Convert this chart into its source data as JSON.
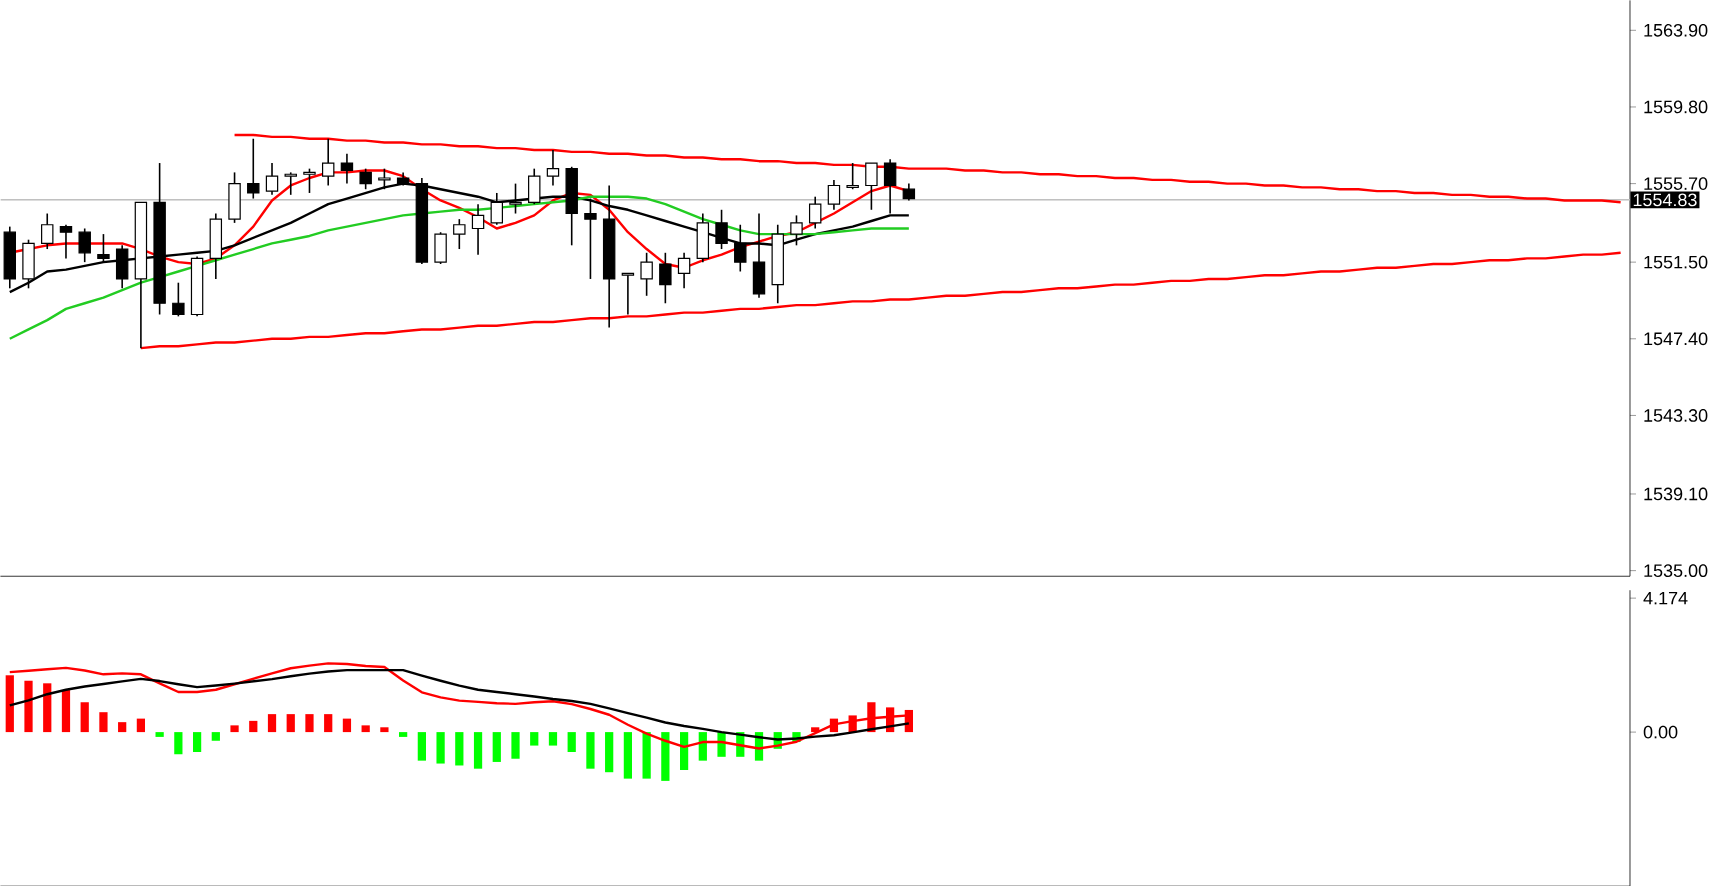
{
  "chart_data": [
    {
      "type": "candlestick",
      "tick_labels": "y",
      "ylim": [
        1534.7,
        1565.5
      ],
      "yticks": [
        {
          "value": 1535.0,
          "label": "1535.00"
        },
        {
          "value": 1539.1,
          "label": "1539.10"
        },
        {
          "value": 1543.3,
          "label": "1543.30"
        },
        {
          "value": 1547.4,
          "label": "1547.40"
        },
        {
          "value": 1551.5,
          "label": "1551.50"
        },
        {
          "value": 1555.7,
          "label": "1555.70"
        },
        {
          "value": 1559.8,
          "label": "1559.80"
        },
        {
          "value": 1563.9,
          "label": "1563.90"
        }
      ],
      "categories": [
        null,
        null,
        null,
        null,
        null,
        null,
        null,
        null,
        null,
        null,
        null,
        null,
        null,
        null,
        null,
        null,
        null,
        null,
        null,
        null,
        null,
        null,
        null,
        null,
        null,
        null,
        null,
        null,
        null,
        null,
        null,
        null,
        null,
        null,
        null,
        null,
        null,
        null,
        null,
        null,
        null,
        null,
        null,
        null,
        null,
        null,
        null,
        null,
        null,
        null,
        null,
        null,
        null,
        null,
        null,
        null,
        null,
        null,
        null,
        null,
        null,
        null,
        null,
        null,
        null,
        null,
        null,
        null,
        null,
        null,
        null,
        null,
        null,
        null,
        null,
        null,
        null,
        null,
        null,
        null,
        null,
        null,
        null,
        null,
        null,
        null,
        null
      ],
      "ohlc": [
        [
          1553.1,
          1553.4,
          1550.1,
          1550.6
        ],
        [
          1550.6,
          1552.7,
          1550.1,
          1552.5
        ],
        [
          1552.5,
          1554.1,
          1552.2,
          1553.5
        ],
        [
          1553.4,
          1553.5,
          1551.7,
          1553.1
        ],
        [
          1553.1,
          1553.3,
          1551.5,
          1552.0
        ],
        [
          1551.9,
          1553.0,
          1551.5,
          1551.7
        ],
        [
          1552.2,
          1552.4,
          1550.1,
          1550.6
        ],
        [
          1550.6,
          1554.7,
          1546.9,
          1554.7
        ],
        [
          1554.7,
          1556.8,
          1548.7,
          1549.3
        ],
        [
          1549.3,
          1550.4,
          1548.6,
          1548.7
        ],
        [
          1548.7,
          1551.8,
          1548.6,
          1551.7
        ],
        [
          1551.7,
          1554.1,
          1550.6,
          1553.8
        ],
        [
          1553.8,
          1556.3,
          1553.6,
          1555.7
        ],
        [
          1555.7,
          1558.1,
          1554.9,
          1555.2
        ],
        [
          1555.3,
          1556.8,
          1555.1,
          1556.1
        ],
        [
          1556.1,
          1556.3,
          1555.1,
          1556.2
        ],
        [
          1556.2,
          1556.5,
          1555.2,
          1556.3
        ],
        [
          1556.1,
          1558.1,
          1555.6,
          1556.8
        ],
        [
          1556.8,
          1557.3,
          1555.7,
          1556.4
        ],
        [
          1556.3,
          1556.5,
          1555.4,
          1555.7
        ],
        [
          1555.9,
          1556.5,
          1555.4,
          1556.0
        ],
        [
          1556.0,
          1556.3,
          1555.6,
          1555.7
        ],
        [
          1555.7,
          1556.0,
          1551.4,
          1551.5
        ],
        [
          1551.5,
          1553.1,
          1551.4,
          1553.0
        ],
        [
          1553.0,
          1553.8,
          1552.2,
          1553.5
        ],
        [
          1553.3,
          1554.6,
          1551.9,
          1554.0
        ],
        [
          1553.6,
          1555.2,
          1553.5,
          1554.7
        ],
        [
          1554.6,
          1555.7,
          1554.1,
          1554.7
        ],
        [
          1554.7,
          1556.5,
          1554.6,
          1556.1
        ],
        [
          1556.1,
          1557.5,
          1555.6,
          1556.5
        ],
        [
          1556.5,
          1556.6,
          1552.4,
          1554.1
        ],
        [
          1554.1,
          1554.9,
          1550.6,
          1553.8
        ],
        [
          1553.8,
          1555.6,
          1548.0,
          1550.6
        ],
        [
          1550.8,
          1550.9,
          1548.7,
          1550.9
        ],
        [
          1550.6,
          1552.0,
          1549.7,
          1551.5
        ],
        [
          1551.4,
          1552.0,
          1549.3,
          1550.3
        ],
        [
          1550.9,
          1552.0,
          1550.1,
          1551.7
        ],
        [
          1551.7,
          1554.1,
          1551.5,
          1553.6
        ],
        [
          1553.6,
          1554.3,
          1552.2,
          1552.5
        ],
        [
          1552.5,
          1553.5,
          1551.0,
          1551.5
        ],
        [
          1551.5,
          1554.1,
          1549.6,
          1549.8
        ],
        [
          1550.3,
          1553.5,
          1549.3,
          1553.0
        ],
        [
          1553.0,
          1554.0,
          1552.4,
          1553.6
        ],
        [
          1553.6,
          1555.0,
          1553.3,
          1554.6
        ],
        [
          1554.6,
          1555.9,
          1554.3,
          1555.6
        ],
        [
          1555.5,
          1556.8,
          1555.4,
          1555.6
        ],
        [
          1555.6,
          1556.8,
          1554.3,
          1556.8
        ],
        [
          1556.8,
          1557.0,
          1554.1,
          1555.6
        ],
        [
          1555.4,
          1555.7,
          1554.8,
          1554.9
        ],
        null,
        null,
        null,
        null,
        null,
        null,
        null,
        null,
        null,
        null,
        null,
        null,
        null,
        null,
        null,
        null,
        null,
        null,
        null,
        null,
        null,
        null,
        null,
        null,
        null,
        null,
        null,
        null,
        null,
        null,
        null,
        null,
        null,
        null,
        null,
        null,
        null,
        null
      ],
      "series": [
        {
          "type": "line",
          "color": "#ff0000",
          "values": [
            1552.0,
            1552.2,
            1552.4,
            1552.5,
            1552.5,
            1552.5,
            1552.5,
            1552.2,
            1551.8,
            1551.5,
            1551.4,
            1551.7,
            1552.4,
            1553.4,
            1554.8,
            1555.6,
            1556.0,
            1556.3,
            1556.3,
            1556.4,
            1556.4,
            1556.1,
            1555.4,
            1554.8,
            1554.4,
            1553.9,
            1553.3,
            1553.6,
            1554.0,
            1554.8,
            1555.2,
            1555.1,
            1554.3,
            1553.1,
            1552.2,
            1551.4,
            1551.2,
            1551.6,
            1551.9,
            1552.3,
            1552.6,
            1552.9,
            1553.1,
            1553.6,
            1554.1,
            1554.7,
            1555.3,
            1555.6,
            1555.3,
            null,
            null,
            null,
            null,
            null,
            null,
            null,
            null,
            null,
            null,
            null,
            null,
            null,
            null,
            null,
            null,
            null,
            null,
            null,
            null,
            null,
            null,
            null,
            null,
            null,
            null,
            null,
            null,
            null,
            null,
            null,
            null,
            null,
            null,
            null,
            null,
            null,
            null
          ]
        },
        {
          "type": "line",
          "color": "#000000",
          "values": [
            1549.9,
            1550.4,
            1551.0,
            1551.1,
            1551.3,
            1551.5,
            1551.6,
            1551.7,
            1551.8,
            1551.9,
            1552.0,
            1552.1,
            1552.4,
            1552.8,
            1553.2,
            1553.6,
            1554.1,
            1554.6,
            1554.9,
            1555.2,
            1555.5,
            1555.7,
            1555.6,
            1555.4,
            1555.2,
            1555.0,
            1554.7,
            1554.8,
            1554.9,
            1555.0,
            1555.0,
            1554.8,
            1554.5,
            1554.3,
            1554.0,
            1553.7,
            1553.4,
            1553.1,
            1552.8,
            1552.5,
            1552.5,
            1552.4,
            1552.7,
            1553.0,
            1553.2,
            1553.4,
            1553.7,
            1554.0,
            1554.0,
            null,
            null,
            null,
            null,
            null,
            null,
            null,
            null,
            null,
            null,
            null,
            null,
            null,
            null,
            null,
            null,
            null,
            null,
            null,
            null,
            null,
            null,
            null,
            null,
            null,
            null,
            null,
            null,
            null,
            null,
            null,
            null,
            null,
            null,
            null,
            null,
            null,
            null
          ]
        },
        {
          "type": "line",
          "color": "#22cc22",
          "values": [
            1547.4,
            1547.9,
            1548.4,
            1549.0,
            1549.3,
            1549.6,
            1550.0,
            1550.4,
            1550.7,
            1551.0,
            1551.3,
            1551.6,
            1551.9,
            1552.2,
            1552.5,
            1552.7,
            1552.9,
            1553.2,
            1553.4,
            1553.6,
            1553.8,
            1554.0,
            1554.1,
            1554.2,
            1554.3,
            1554.3,
            1554.4,
            1554.5,
            1554.6,
            1554.7,
            1554.8,
            1555.0,
            1555.0,
            1555.0,
            1554.9,
            1554.6,
            1554.2,
            1553.8,
            1553.5,
            1553.2,
            1553.0,
            1553.0,
            1553.0,
            1553.0,
            1553.1,
            1553.2,
            1553.3,
            1553.3,
            1553.3,
            null,
            null,
            null,
            null,
            null,
            null,
            null,
            null,
            null,
            null,
            null,
            null,
            null,
            null,
            null,
            null,
            null,
            null,
            null,
            null,
            null,
            null,
            null,
            null,
            null,
            null,
            null,
            null,
            null,
            null,
            null,
            null,
            null,
            null,
            null,
            null,
            null,
            null
          ]
        },
        {
          "type": "line",
          "color": "#ff0000",
          "values": [
            null,
            null,
            null,
            null,
            null,
            null,
            null,
            null,
            null,
            null,
            null,
            null,
            1558.3,
            1558.3,
            1558.2,
            1558.2,
            1558.1,
            1558.1,
            1558.0,
            1558.0,
            1557.9,
            1557.9,
            1557.8,
            1557.8,
            1557.7,
            1557.7,
            1557.6,
            1557.6,
            1557.5,
            1557.5,
            1557.4,
            1557.4,
            1557.3,
            1557.3,
            1557.2,
            1557.2,
            1557.1,
            1557.1,
            1557.0,
            1557.0,
            1556.9,
            1556.9,
            1556.8,
            1556.8,
            1556.7,
            1556.7,
            1556.6,
            1556.6,
            1556.5,
            1556.5,
            1556.5,
            1556.4,
            1556.4,
            1556.3,
            1556.3,
            1556.2,
            1556.2,
            1556.1,
            1556.1,
            1556.0,
            1556.0,
            1555.9,
            1555.9,
            1555.8,
            1555.8,
            1555.7,
            1555.7,
            1555.6,
            1555.6,
            1555.5,
            1555.5,
            1555.4,
            1555.4,
            1555.3,
            1555.3,
            1555.2,
            1555.2,
            1555.1,
            1555.1,
            1555.0,
            1555.0,
            1554.9,
            1554.9,
            1554.8,
            1554.8,
            1554.8,
            1554.7
          ]
        },
        {
          "type": "line",
          "color": "#ff0000",
          "values": [
            null,
            null,
            null,
            null,
            null,
            null,
            null,
            1546.9,
            1547.0,
            1547.0,
            1547.1,
            1547.2,
            1547.2,
            1547.3,
            1547.4,
            1547.4,
            1547.5,
            1547.5,
            1547.6,
            1547.7,
            1547.7,
            1547.8,
            1547.9,
            1547.9,
            1548.0,
            1548.1,
            1548.1,
            1548.2,
            1548.3,
            1548.3,
            1548.4,
            1548.5,
            1548.5,
            1548.6,
            1548.6,
            1548.7,
            1548.8,
            1548.8,
            1548.9,
            1549.0,
            1549.0,
            1549.1,
            1549.2,
            1549.2,
            1549.3,
            1549.4,
            1549.4,
            1549.5,
            1549.5,
            1549.6,
            1549.7,
            1549.7,
            1549.8,
            1549.9,
            1549.9,
            1550.0,
            1550.1,
            1550.1,
            1550.2,
            1550.3,
            1550.3,
            1550.4,
            1550.5,
            1550.5,
            1550.6,
            1550.6,
            1550.7,
            1550.8,
            1550.8,
            1550.9,
            1551.0,
            1551.0,
            1551.1,
            1551.2,
            1551.2,
            1551.3,
            1551.4,
            1551.4,
            1551.5,
            1551.6,
            1551.6,
            1551.7,
            1551.7,
            1551.8,
            1551.9,
            1551.9,
            1552.0
          ]
        }
      ],
      "ref_lines": [
        {
          "axis": "y",
          "value": 1554.83,
          "label": "1554.83",
          "color": "#c0c0c0"
        }
      ]
    },
    {
      "type": "bar",
      "tick_labels": "y",
      "ylim": [
        -4.8,
        4.42
      ],
      "yticks": [
        {
          "value": 0,
          "label": "0.00"
        },
        4.174
      ],
      "categories": [
        null,
        null,
        null,
        null,
        null,
        null,
        null,
        null,
        null,
        null,
        null,
        null,
        null,
        null,
        null,
        null,
        null,
        null,
        null,
        null,
        null,
        null,
        null,
        null,
        null,
        null,
        null,
        null,
        null,
        null,
        null,
        null,
        null,
        null,
        null,
        null,
        null,
        null,
        null,
        null,
        null,
        null,
        null,
        null,
        null,
        null,
        null,
        null,
        null,
        null,
        null,
        null,
        null,
        null,
        null,
        null,
        null,
        null,
        null,
        null,
        null,
        null,
        null,
        null,
        null,
        null,
        null,
        null,
        null,
        null,
        null,
        null,
        null,
        null,
        null,
        null,
        null,
        null,
        null,
        null,
        null,
        null,
        null,
        null,
        null,
        null,
        null
      ],
      "series": [
        {
          "type": "bar",
          "values": [
            1.77,
            1.6,
            1.52,
            1.31,
            0.93,
            0.62,
            0.31,
            0.42,
            -0.15,
            -0.69,
            -0.62,
            -0.27,
            0.21,
            0.35,
            0.56,
            0.56,
            0.56,
            0.56,
            0.42,
            0.21,
            0.15,
            -0.15,
            -0.89,
            -0.98,
            -1.04,
            -1.14,
            -0.93,
            -0.83,
            -0.42,
            -0.42,
            -0.62,
            -1.14,
            -1.25,
            -1.45,
            -1.45,
            -1.52,
            -1.18,
            -0.89,
            -0.77,
            -0.77,
            -0.89,
            -0.52,
            -0.31,
            0.15,
            0.42,
            0.52,
            0.93,
            0.77,
            0.69,
            null,
            null,
            null,
            null,
            null,
            null,
            null,
            null,
            null,
            null,
            null,
            null,
            null,
            null,
            null,
            null,
            null,
            null,
            null,
            null,
            null,
            null,
            null,
            null,
            null,
            null,
            null,
            null,
            null,
            null,
            null,
            null,
            null,
            null,
            null,
            null,
            null,
            null
          ],
          "colors": [
            "#ff0000",
            "#ff0000",
            "#ff0000",
            "#ff0000",
            "#ff0000",
            "#ff0000",
            "#ff0000",
            "#ff0000",
            "#00ff00",
            "#00ff00",
            "#00ff00",
            "#00ff00",
            "#ff0000",
            "#ff0000",
            "#ff0000",
            "#ff0000",
            "#ff0000",
            "#ff0000",
            "#ff0000",
            "#ff0000",
            "#ff0000",
            "#00ff00",
            "#00ff00",
            "#00ff00",
            "#00ff00",
            "#00ff00",
            "#00ff00",
            "#00ff00",
            "#00ff00",
            "#00ff00",
            "#00ff00",
            "#00ff00",
            "#00ff00",
            "#00ff00",
            "#00ff00",
            "#00ff00",
            "#00ff00",
            "#00ff00",
            "#00ff00",
            "#00ff00",
            "#00ff00",
            "#00ff00",
            "#00ff00",
            "#ff0000",
            "#ff0000",
            "#ff0000",
            "#ff0000",
            "#ff0000",
            "#ff0000",
            null,
            null,
            null,
            null,
            null,
            null,
            null,
            null,
            null,
            null,
            null,
            null,
            null,
            null,
            null,
            null,
            null,
            null,
            null,
            null,
            null,
            null,
            null,
            null,
            null,
            null,
            null,
            null,
            null,
            null,
            null,
            null,
            null,
            null,
            null,
            null,
            null,
            null
          ]
        },
        {
          "type": "line",
          "color": "#ff0000",
          "values": [
            1.87,
            1.91,
            1.96,
            2.0,
            1.92,
            1.8,
            1.83,
            1.8,
            1.52,
            1.25,
            1.25,
            1.32,
            1.49,
            1.66,
            1.83,
            1.99,
            2.07,
            2.14,
            2.12,
            2.06,
            2.03,
            1.61,
            1.24,
            1.08,
            0.98,
            0.94,
            0.9,
            0.88,
            0.93,
            0.96,
            0.87,
            0.72,
            0.54,
            0.23,
            -0.05,
            -0.27,
            -0.46,
            -0.31,
            -0.31,
            -0.41,
            -0.51,
            -0.42,
            -0.3,
            -0.03,
            0.24,
            0.34,
            0.43,
            0.48,
            0.52,
            null,
            null,
            null,
            null,
            null,
            null,
            null,
            null,
            null,
            null,
            null,
            null,
            null,
            null,
            null,
            null,
            null,
            null,
            null,
            null,
            null,
            null,
            null,
            null,
            null,
            null,
            null,
            null,
            null,
            null,
            null,
            null,
            null,
            null,
            null,
            null,
            null,
            null
          ]
        },
        {
          "type": "line",
          "color": "#000000",
          "values": [
            0.83,
            0.99,
            1.18,
            1.32,
            1.42,
            1.5,
            1.58,
            1.66,
            1.59,
            1.49,
            1.4,
            1.45,
            1.51,
            1.58,
            1.65,
            1.74,
            1.82,
            1.89,
            1.93,
            1.93,
            1.93,
            1.93,
            1.76,
            1.6,
            1.45,
            1.32,
            1.25,
            1.18,
            1.11,
            1.03,
            0.97,
            0.88,
            0.74,
            0.59,
            0.45,
            0.3,
            0.19,
            0.1,
            0.0,
            -0.08,
            -0.16,
            -0.23,
            -0.2,
            -0.14,
            -0.1,
            -0.01,
            0.09,
            0.18,
            0.27,
            null,
            null,
            null,
            null,
            null,
            null,
            null,
            null,
            null,
            null,
            null,
            null,
            null,
            null,
            null,
            null,
            null,
            null,
            null,
            null,
            null,
            null,
            null,
            null,
            null,
            null,
            null,
            null,
            null,
            null,
            null,
            null,
            null,
            null,
            null,
            null,
            null,
            null
          ]
        }
      ]
    }
  ]
}
